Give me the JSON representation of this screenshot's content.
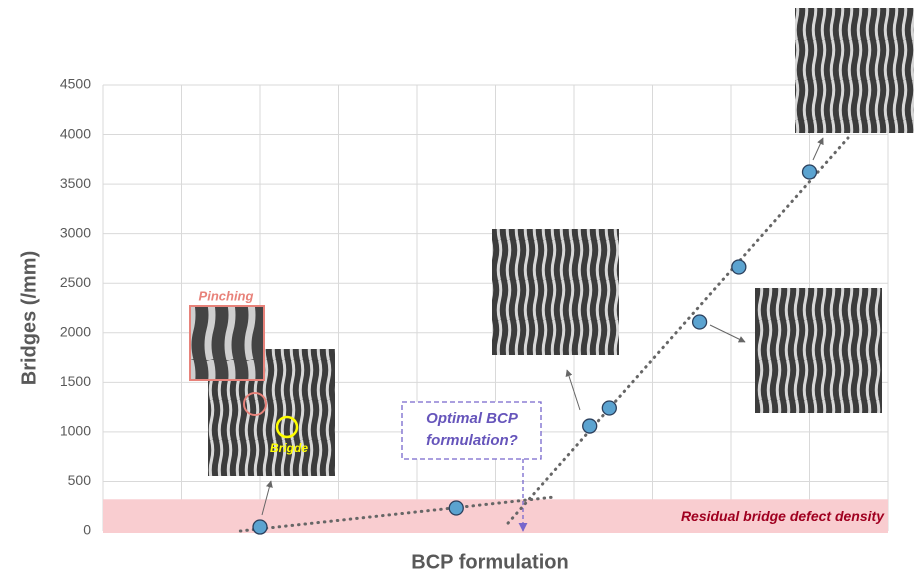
{
  "chart_data": {
    "type": "scatter",
    "y_label": "Bridges (/mm)",
    "x_label": "BCP formulation",
    "x": [
      2,
      4.5,
      6.2,
      6.45,
      7.6,
      8.1,
      9
    ],
    "values": [
      40,
      232,
      1059,
      1241,
      2109,
      2664,
      3622
    ],
    "color": "#5ba3d0",
    "xlim": [
      0,
      10
    ],
    "ylim": [
      0,
      4500
    ],
    "yticks": [
      0,
      500,
      1000,
      1500,
      2000,
      2500,
      3000,
      3500,
      4000,
      4500
    ],
    "grid": true,
    "trend_lines": [
      {
        "x": [
          1.75,
          5.75
        ],
        "values": [
          0,
          343
        ]
      },
      {
        "x": [
          5.16,
          9.49
        ],
        "values": [
          80,
          3965
        ]
      }
    ],
    "band": {
      "label": "Residual bridge defect density",
      "ylim": [
        0,
        320
      ],
      "color": "#f9cdd0"
    },
    "annotations": {
      "pinching": "Pinching",
      "bridge": "Brigde",
      "optimal": [
        "Optimal BCP",
        "formulation?"
      ]
    }
  }
}
